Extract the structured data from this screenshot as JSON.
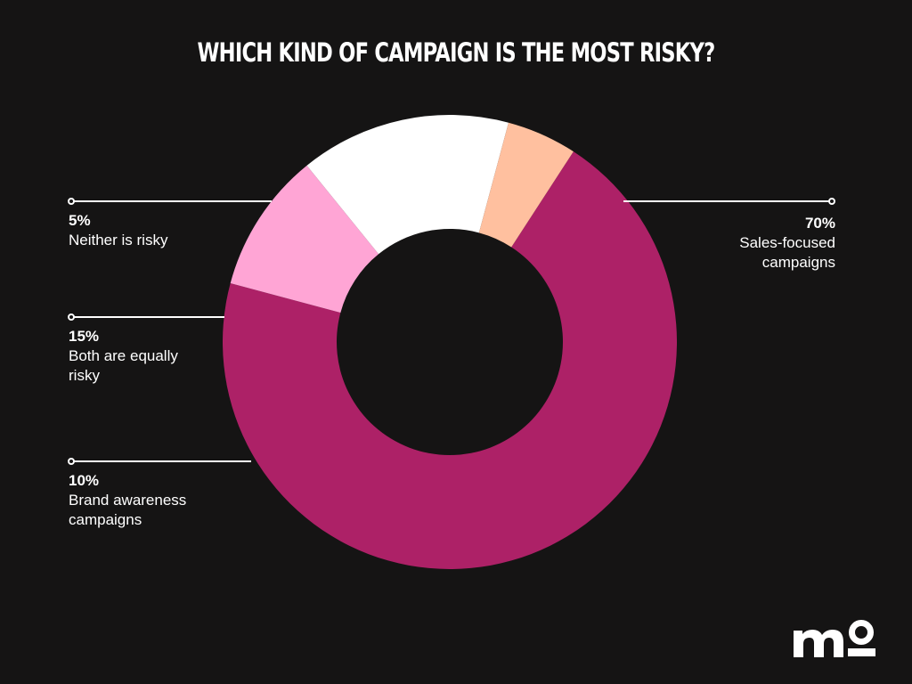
{
  "title": "WHICH KIND OF CAMPAIGN IS THE MOST RISKY?",
  "logo": "mo",
  "colors": {
    "background": "#151414",
    "sales": "#ad2167",
    "neither": "#ffc09f",
    "both": "#ffffff",
    "brand": "#ffa5d5",
    "leader": "#ffffff"
  },
  "chart_data": {
    "type": "pie",
    "variant": "donut",
    "title": "WHICH KIND OF CAMPAIGN IS THE MOST RISKY?",
    "unit": "%",
    "slices": [
      {
        "label_lines": [
          "Sales-focused",
          "campaigns"
        ],
        "value": 70,
        "display": "70%",
        "color": "#ad2167"
      },
      {
        "label_lines": [
          "Brand awareness",
          "campaigns"
        ],
        "value": 10,
        "display": "10%",
        "color": "#ffa5d5"
      },
      {
        "label_lines": [
          "Both are equally",
          "risky"
        ],
        "value": 15,
        "display": "15%",
        "color": "#ffffff"
      },
      {
        "label_lines": [
          "Neither is risky"
        ],
        "value": 5,
        "display": "5%",
        "color": "#ffc09f"
      }
    ]
  }
}
